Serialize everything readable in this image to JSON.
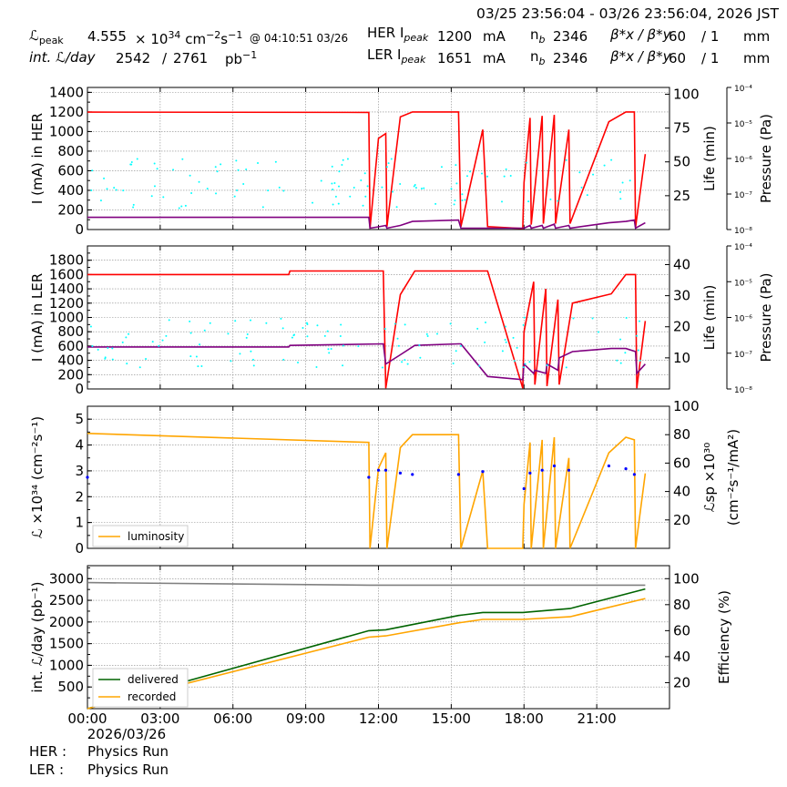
{
  "header": {
    "time_range": "03/25 23:56:04 - 03/26 23:56:04, 2026 JST",
    "lpeak_label": "ℒ",
    "lpeak_sub": "peak",
    "lpeak_value": "4.555",
    "lpeak_unit_pre": "× 10",
    "lpeak_unit_exp": "34",
    "lpeak_unit_mid": " cm",
    "lpeak_unit_exp2": "−2",
    "lpeak_unit_s": "s",
    "lpeak_unit_exp3": "−1",
    "lpeak_time": "@ 04:10:51 03/26",
    "intl_label": "int. ℒ/day",
    "intl_value": "2542",
    "intl_sep": "/",
    "intl_value2": "2761",
    "intl_unit": "pb",
    "intl_unit_exp": "−1",
    "her_label": "HER I",
    "her_sub": "peak",
    "her_value": "1200",
    "her_unit": "mA",
    "ler_label": "LER I",
    "ler_sub": "peak",
    "ler_value": "1651",
    "ler_unit": "mA",
    "nb_label": "n",
    "nb_sub": "b",
    "nb_her": "2346",
    "nb_ler": "2346",
    "beta_label": "β*x / β*y",
    "beta_x": "60",
    "beta_sep": "/ 1",
    "beta_unit": "mm"
  },
  "footer": {
    "her_label": "HER :",
    "her_status": "Physics Run",
    "ler_label": "LER :",
    "ler_status": "Physics Run"
  },
  "colors": {
    "current": "#ff0000",
    "life": "#800080",
    "pressure": "#00ffff",
    "luminosity": "#ffa500",
    "specific": "#0000ff",
    "delivered": "#006400",
    "recorded": "#ffa500",
    "efficiency": "#808080"
  },
  "chart_data": [
    {
      "type": "line",
      "ylabel": "I (mA) in HER",
      "ylim": [
        0,
        1450
      ],
      "yticks": [
        "0",
        "200",
        "400",
        "600",
        "800",
        "1000",
        "1200",
        "1400"
      ],
      "y2label": "Life (min)",
      "y2ticks": [
        "25",
        "50",
        "75",
        "100"
      ],
      "y2lim": [
        0,
        105
      ],
      "y3label": "Pressure (Pa)",
      "y3ticks": [
        "10⁻⁸",
        "10⁻⁷",
        "10⁻⁶",
        "10⁻⁵",
        "10⁻⁴"
      ],
      "x": [
        0.0,
        11.6,
        11.65,
        12.0,
        12.3,
        12.35,
        12.9,
        13.4,
        15.3,
        15.4,
        16.3,
        16.5,
        17.95,
        18.0,
        18.25,
        18.3,
        18.75,
        18.8,
        19.25,
        19.3,
        19.85,
        19.9,
        21.5,
        22.2,
        22.55,
        22.6,
        23.0
      ],
      "series": [
        {
          "role": "current",
          "values": [
            1198,
            1195,
            10,
            930,
            980,
            30,
            1150,
            1200,
            1200,
            30,
            1020,
            30,
            10,
            480,
            1140,
            50,
            1160,
            60,
            1170,
            60,
            1020,
            60,
            1100,
            1200,
            1200,
            20,
            770
          ]
        },
        {
          "role": "life",
          "values": [
            9,
            9,
            1,
            2,
            3,
            1,
            3,
            6,
            7,
            1,
            1,
            1,
            1,
            1,
            3,
            1,
            3,
            1,
            4,
            1,
            3,
            1,
            5,
            6,
            7,
            1,
            5
          ]
        }
      ]
    },
    {
      "type": "line",
      "ylabel": "I (mA) in LER",
      "ylim": [
        0,
        2000
      ],
      "yticks": [
        "0",
        "200",
        "400",
        "600",
        "800",
        "1000",
        "1200",
        "1400",
        "1600",
        "1800"
      ],
      "y2label": "Life (min)",
      "y2ticks": [
        "10",
        "20",
        "30",
        "40"
      ],
      "y2lim": [
        0,
        46
      ],
      "y3label": "Pressure (Pa)",
      "y3ticks": [
        "10⁻⁸",
        "10⁻⁷",
        "10⁻⁶",
        "10⁻⁵",
        "10⁻⁴"
      ],
      "x": [
        0.0,
        8.3,
        8.35,
        12.2,
        12.3,
        12.9,
        13.5,
        15.3,
        15.4,
        16.5,
        17.95,
        18.0,
        18.4,
        18.45,
        18.9,
        18.95,
        19.4,
        19.45,
        20.0,
        21.6,
        22.2,
        22.6,
        22.65,
        23.0
      ],
      "series": [
        {
          "role": "current",
          "values": [
            1600,
            1600,
            1650,
            1650,
            10,
            1320,
            1650,
            1650,
            1650,
            1650,
            10,
            800,
            1500,
            60,
            1400,
            40,
            1250,
            60,
            1200,
            1330,
            1600,
            1600,
            10,
            950
          ]
        },
        {
          "role": "life",
          "values": [
            13.5,
            13.5,
            14,
            14.5,
            8,
            11,
            14,
            14.5,
            14.5,
            4,
            3,
            8,
            5,
            6,
            5,
            8,
            6,
            10,
            12,
            13,
            13,
            12,
            5,
            8
          ]
        }
      ]
    },
    {
      "type": "line",
      "ylabel": "ℒ ×10³⁴ (cm⁻²s⁻¹)",
      "ylim": [
        0,
        5.5
      ],
      "yticks": [
        "0",
        "1",
        "2",
        "3",
        "4",
        "5"
      ],
      "y2label": "ℒsp ×10³⁰ (cm⁻²s⁻¹/mA²)",
      "y2ticks": [
        "20",
        "40",
        "60",
        "80",
        "100"
      ],
      "y2lim": [
        0,
        100
      ],
      "legend": [
        "luminosity"
      ],
      "legend_pos": "lower-left",
      "x": [
        0.0,
        11.6,
        11.65,
        12.0,
        12.3,
        12.35,
        12.9,
        13.4,
        15.3,
        15.4,
        16.3,
        16.5,
        17.95,
        18.0,
        18.25,
        18.3,
        18.75,
        18.8,
        19.25,
        19.3,
        19.85,
        19.9,
        21.5,
        22.2,
        22.55,
        22.6,
        23.0
      ],
      "series": [
        {
          "name": "luminosity",
          "role": "luminosity",
          "values": [
            4.45,
            4.1,
            0.0,
            3.1,
            3.7,
            0.0,
            3.9,
            4.4,
            4.4,
            0.0,
            3.0,
            0.0,
            0.0,
            1.7,
            4.1,
            0.0,
            4.2,
            0.0,
            4.3,
            0.0,
            3.5,
            0.0,
            3.7,
            4.3,
            4.2,
            0.0,
            2.9
          ]
        },
        {
          "role": "specific",
          "values": [
            50,
            50,
            null,
            55,
            55,
            null,
            53,
            52,
            52,
            null,
            54,
            null,
            null,
            42,
            53,
            null,
            55,
            null,
            58,
            null,
            55,
            null,
            58,
            56,
            52,
            null,
            null
          ]
        }
      ]
    },
    {
      "type": "line",
      "ylabel": "int. ℒ/day (pb⁻¹)",
      "ylim": [
        0,
        3300
      ],
      "yticks": [
        "500",
        "1000",
        "1500",
        "2000",
        "2500",
        "3000"
      ],
      "y2label": "Efficiency (%)",
      "y2ticks": [
        "20",
        "40",
        "60",
        "80",
        "100"
      ],
      "y2lim": [
        0,
        110
      ],
      "legend": [
        "delivered",
        "recorded"
      ],
      "legend_pos": "lower-left",
      "x": [
        0.0,
        11.6,
        12.3,
        15.3,
        16.3,
        17.95,
        19.9,
        23.0
      ],
      "series": [
        {
          "name": "delivered",
          "role": "delivered",
          "values": [
            0,
            1800,
            1820,
            2150,
            2220,
            2220,
            2310,
            2761
          ]
        },
        {
          "name": "recorded",
          "role": "recorded",
          "values": [
            0,
            1650,
            1680,
            1980,
            2060,
            2060,
            2120,
            2542
          ]
        },
        {
          "role": "efficiency",
          "values": [
            97,
            95,
            95,
            95,
            95,
            95,
            95,
            95
          ]
        }
      ],
      "xticks": [
        "00:00",
        "03:00",
        "06:00",
        "09:00",
        "12:00",
        "15:00",
        "18:00",
        "21:00"
      ],
      "xsub": "2026/03/26"
    }
  ]
}
